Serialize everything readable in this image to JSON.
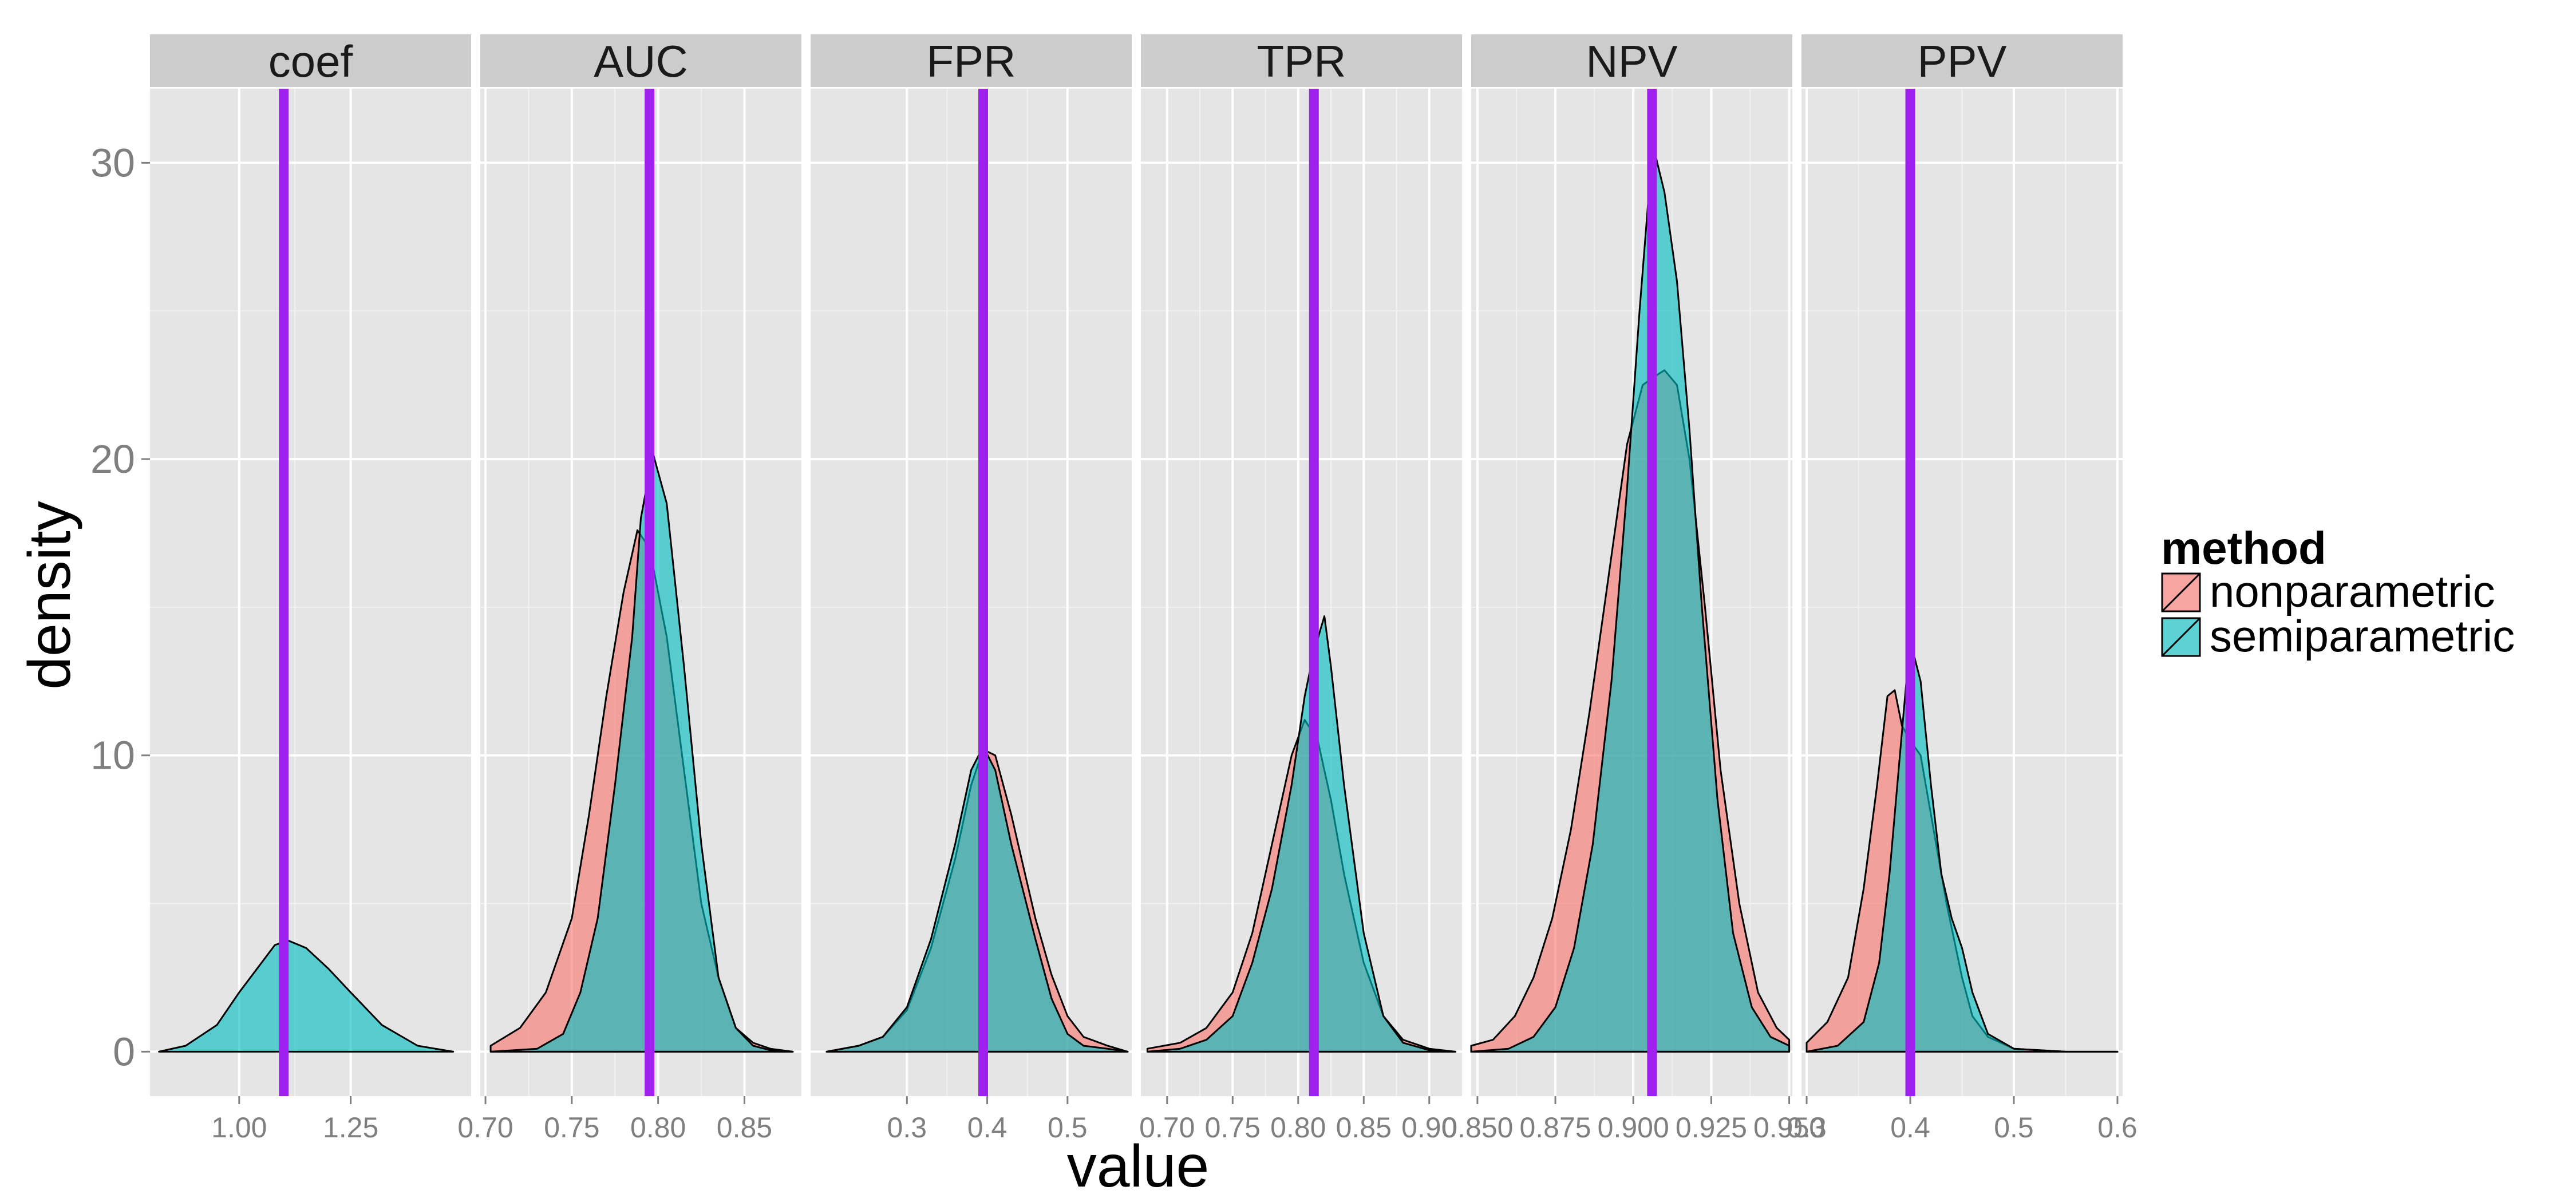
{
  "chart_data": {
    "type": "density",
    "xlabel": "value",
    "ylabel": "density",
    "ylim": [
      -1.5,
      32.5
    ],
    "yticks": [
      0,
      10,
      20,
      30
    ],
    "ytick_labels": [
      "0",
      "10",
      "20",
      "30"
    ],
    "grid": true,
    "colors": {
      "panel_bg": "#e5e5e5",
      "strip_bg": "#cccccc",
      "grid_major": "#ffffff",
      "grid_minor": "#f2f2f2",
      "reference_line": "#a020f0"
    },
    "legend": {
      "title": "method",
      "position": "right",
      "items": [
        {
          "label": "nonparametric",
          "color": "#f8766d"
        },
        {
          "label": "semiparametric",
          "color": "#00bfc4"
        }
      ]
    },
    "facets": [
      {
        "label": "coef",
        "xlim": [
          0.8,
          1.52
        ],
        "xticks": [
          1.0,
          1.25
        ],
        "xtick_labels": [
          "1.00",
          "1.25"
        ],
        "reference": 1.1,
        "series": [
          {
            "name": "semiparametric",
            "x": [
              0.82,
              0.88,
              0.95,
              1.0,
              1.05,
              1.08,
              1.11,
              1.15,
              1.2,
              1.25,
              1.32,
              1.4,
              1.48
            ],
            "y": [
              0,
              0.2,
              0.9,
              2.0,
              3.0,
              3.6,
              3.75,
              3.5,
              2.8,
              2.0,
              0.9,
              0.2,
              0
            ]
          }
        ]
      },
      {
        "label": "AUC",
        "xlim": [
          0.697,
          0.883
        ],
        "xticks": [
          0.7,
          0.75,
          0.8,
          0.85
        ],
        "xtick_labels": [
          "0.70",
          "0.75",
          "0.80",
          "0.85"
        ],
        "reference": 0.795,
        "series": [
          {
            "name": "nonparametric",
            "x": [
              0.703,
              0.72,
              0.735,
              0.75,
              0.76,
              0.77,
              0.78,
              0.788,
              0.795,
              0.805,
              0.815,
              0.825,
              0.835,
              0.845,
              0.855,
              0.865,
              0.878
            ],
            "y": [
              0.2,
              0.8,
              2.0,
              4.5,
              8.0,
              12.0,
              15.5,
              17.6,
              17.0,
              14.0,
              9.5,
              5.0,
              2.5,
              0.8,
              0.3,
              0.1,
              0
            ]
          },
          {
            "name": "semiparametric",
            "x": [
              0.703,
              0.73,
              0.745,
              0.755,
              0.765,
              0.775,
              0.785,
              0.79,
              0.797,
              0.805,
              0.815,
              0.825,
              0.835,
              0.845,
              0.855,
              0.865,
              0.878
            ],
            "y": [
              0,
              0.1,
              0.6,
              2.0,
              4.5,
              9.0,
              14.0,
              18.0,
              20.2,
              18.5,
              13.0,
              7.0,
              2.5,
              0.8,
              0.2,
              0.05,
              0
            ]
          }
        ]
      },
      {
        "label": "FPR",
        "xlim": [
          0.18,
          0.58
        ],
        "xticks": [
          0.3,
          0.4,
          0.5
        ],
        "xtick_labels": [
          "0.3",
          "0.4",
          "0.5"
        ],
        "reference": 0.395,
        "series": [
          {
            "name": "nonparametric",
            "x": [
              0.2,
              0.24,
              0.27,
              0.3,
              0.33,
              0.36,
              0.38,
              0.395,
              0.41,
              0.43,
              0.46,
              0.48,
              0.5,
              0.52,
              0.55,
              0.575
            ],
            "y": [
              0,
              0.2,
              0.5,
              1.4,
              3.5,
              6.5,
              9.0,
              10.2,
              10.0,
              8.0,
              4.5,
              2.6,
              1.2,
              0.5,
              0.2,
              0
            ]
          },
          {
            "name": "semiparametric",
            "x": [
              0.2,
              0.24,
              0.27,
              0.3,
              0.33,
              0.36,
              0.38,
              0.395,
              0.41,
              0.43,
              0.46,
              0.48,
              0.5,
              0.52,
              0.55,
              0.575
            ],
            "y": [
              0,
              0.2,
              0.5,
              1.5,
              3.8,
              7.0,
              9.5,
              10.3,
              9.5,
              7.0,
              3.8,
              1.8,
              0.6,
              0.2,
              0.1,
              0
            ]
          }
        ]
      },
      {
        "label": "TPR",
        "xlim": [
          0.68,
          0.925
        ],
        "xticks": [
          0.7,
          0.75,
          0.8,
          0.85,
          0.9
        ],
        "xtick_labels": [
          "0.70",
          "0.75",
          "0.80",
          "0.85",
          "0.90"
        ],
        "reference": 0.812,
        "series": [
          {
            "name": "nonparametric",
            "x": [
              0.685,
              0.71,
              0.73,
              0.75,
              0.765,
              0.78,
              0.795,
              0.805,
              0.815,
              0.825,
              0.835,
              0.85,
              0.865,
              0.88,
              0.9,
              0.92
            ],
            "y": [
              0.1,
              0.3,
              0.8,
              2.0,
              4.0,
              7.0,
              10.0,
              11.2,
              10.5,
              8.5,
              6.0,
              3.0,
              1.2,
              0.4,
              0.1,
              0
            ]
          },
          {
            "name": "semiparametric",
            "x": [
              0.685,
              0.71,
              0.73,
              0.75,
              0.765,
              0.78,
              0.795,
              0.805,
              0.812,
              0.82,
              0.825,
              0.835,
              0.85,
              0.865,
              0.88,
              0.9,
              0.92
            ],
            "y": [
              0,
              0.1,
              0.4,
              1.2,
              3.0,
              5.5,
              9.0,
              12.0,
              13.5,
              14.7,
              13.0,
              9.0,
              4.0,
              1.2,
              0.3,
              0.05,
              0
            ]
          }
        ]
      },
      {
        "label": "NPV",
        "xlim": [
          0.848,
          0.951
        ],
        "xticks": [
          0.85,
          0.875,
          0.9,
          0.925,
          0.95
        ],
        "xtick_labels": [
          "0.850",
          "0.875",
          "0.900",
          "0.925",
          "0.950"
        ],
        "reference": 0.906,
        "series": [
          {
            "name": "nonparametric",
            "x": [
              0.848,
              0.855,
              0.862,
              0.868,
              0.874,
              0.88,
              0.886,
              0.892,
              0.898,
              0.903,
              0.907,
              0.91,
              0.914,
              0.918,
              0.923,
              0.928,
              0.934,
              0.94,
              0.946,
              0.95
            ],
            "y": [
              0.2,
              0.4,
              1.2,
              2.5,
              4.5,
              7.5,
              11.5,
              16.0,
              20.5,
              22.5,
              22.8,
              23.0,
              22.5,
              20.0,
              15.0,
              9.5,
              5.0,
              2.0,
              0.8,
              0.4
            ]
          },
          {
            "name": "semiparametric",
            "x": [
              0.848,
              0.86,
              0.868,
              0.875,
              0.881,
              0.887,
              0.893,
              0.898,
              0.902,
              0.905,
              0.907,
              0.91,
              0.914,
              0.918,
              0.922,
              0.927,
              0.932,
              0.938,
              0.944,
              0.95
            ],
            "y": [
              0,
              0.1,
              0.5,
              1.5,
              3.5,
              7.0,
              12.5,
              19.0,
              25.0,
              29.0,
              30.3,
              29.0,
              26.0,
              21.0,
              15.0,
              8.5,
              4.0,
              1.5,
              0.5,
              0.2
            ]
          }
        ]
      },
      {
        "label": "PPV",
        "xlim": [
          0.295,
          0.605
        ],
        "xticks": [
          0.3,
          0.4,
          0.5,
          0.6
        ],
        "xtick_labels": [
          "0.3",
          "0.4",
          "0.5",
          "0.6"
        ],
        "reference": 0.4,
        "series": [
          {
            "name": "nonparametric",
            "x": [
              0.3,
              0.32,
              0.34,
              0.355,
              0.368,
              0.378,
              0.385,
              0.392,
              0.4,
              0.41,
              0.42,
              0.435,
              0.45,
              0.46,
              0.475,
              0.5,
              0.55,
              0.6
            ],
            "y": [
              0.3,
              1.0,
              2.5,
              5.5,
              9.0,
              12.0,
              12.2,
              11.0,
              10.5,
              10.0,
              8.0,
              5.0,
              2.5,
              1.2,
              0.5,
              0.1,
              0,
              0
            ]
          },
          {
            "name": "semiparametric",
            "x": [
              0.3,
              0.33,
              0.355,
              0.37,
              0.38,
              0.39,
              0.397,
              0.402,
              0.41,
              0.42,
              0.43,
              0.44,
              0.45,
              0.46,
              0.475,
              0.5,
              0.55,
              0.6
            ],
            "y": [
              0,
              0.2,
              1.0,
              3.0,
              6.0,
              10.0,
              12.8,
              13.6,
              12.5,
              9.0,
              6.0,
              4.5,
              3.5,
              2.0,
              0.6,
              0.1,
              0,
              0
            ]
          }
        ]
      }
    ]
  }
}
